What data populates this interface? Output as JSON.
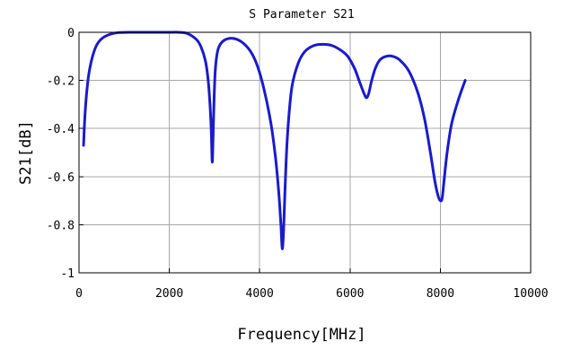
{
  "chart_data": {
    "type": "line",
    "title": "S Parameter S21",
    "xlabel": "Frequency[MHz]",
    "ylabel": "S21[dB]",
    "xlim": [
      0,
      10000
    ],
    "ylim": [
      -1,
      0
    ],
    "x_ticks": [
      0,
      2000,
      4000,
      6000,
      8000,
      10000
    ],
    "y_ticks": [
      0,
      -0.2,
      -0.4,
      -0.6,
      -0.8,
      -1
    ],
    "x_tick_labels": [
      "0",
      "2000",
      "4000",
      "6000",
      "8000",
      "10000"
    ],
    "y_tick_labels": [
      "0",
      "-0.2",
      "-0.4",
      "-0.6",
      "-0.8",
      "-1"
    ],
    "grid": true,
    "series": [
      {
        "color": "#1a1acc",
        "x": [
          100,
          130,
          170,
          220,
          300,
          400,
          550,
          800,
          1200,
          1600,
          2000,
          2200,
          2400,
          2600,
          2700,
          2800,
          2860,
          2900,
          2930,
          2950,
          2970,
          2990,
          3020,
          3080,
          3200,
          3400,
          3600,
          3800,
          3950,
          4100,
          4250,
          4350,
          4420,
          4470,
          4500,
          4530,
          4560,
          4600,
          4650,
          4720,
          4850,
          5000,
          5200,
          5400,
          5600,
          5800,
          5950,
          6100,
          6200,
          6300,
          6350,
          6380,
          6420,
          6480,
          6560,
          6660,
          6800,
          6950,
          7100,
          7300,
          7500,
          7650,
          7780,
          7880,
          7950,
          8000,
          8040,
          8080,
          8150,
          8250,
          8400,
          8550
        ],
        "y": [
          -0.47,
          -0.35,
          -0.25,
          -0.17,
          -0.1,
          -0.05,
          -0.02,
          -0.003,
          0,
          0,
          0,
          0,
          -0.005,
          -0.03,
          -0.06,
          -0.12,
          -0.2,
          -0.3,
          -0.42,
          -0.54,
          -0.42,
          -0.28,
          -0.15,
          -0.07,
          -0.035,
          -0.025,
          -0.04,
          -0.08,
          -0.14,
          -0.24,
          -0.38,
          -0.52,
          -0.66,
          -0.8,
          -0.9,
          -0.82,
          -0.66,
          -0.48,
          -0.34,
          -0.22,
          -0.13,
          -0.08,
          -0.055,
          -0.05,
          -0.055,
          -0.075,
          -0.1,
          -0.15,
          -0.2,
          -0.25,
          -0.27,
          -0.27,
          -0.25,
          -0.2,
          -0.15,
          -0.115,
          -0.1,
          -0.1,
          -0.115,
          -0.16,
          -0.25,
          -0.36,
          -0.5,
          -0.62,
          -0.68,
          -0.7,
          -0.69,
          -0.62,
          -0.5,
          -0.38,
          -0.28,
          -0.2
        ]
      }
    ]
  }
}
